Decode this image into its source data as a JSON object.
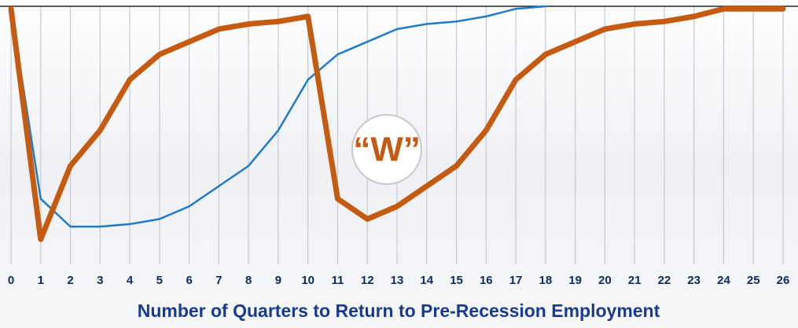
{
  "chart_data": {
    "type": "line",
    "title": "Number of Quarters to Return to Pre-Recession Employment",
    "annotation": "“W”",
    "x": [
      0,
      1,
      2,
      3,
      4,
      5,
      6,
      7,
      8,
      9,
      10,
      11,
      12,
      13,
      14,
      15,
      16,
      17,
      18,
      19,
      20,
      21,
      22,
      23,
      24,
      25,
      26
    ],
    "series": [
      {
        "color": "#1f7ac9",
        "width": 2.5,
        "values": [
          99,
          24,
          13,
          13,
          14,
          16,
          21,
          29,
          37,
          51,
          71,
          81,
          86,
          91,
          93,
          94,
          96,
          99,
          100,
          null,
          null,
          null,
          null,
          null,
          null,
          null,
          null
        ]
      },
      {
        "color": "#c55a11",
        "width": 7,
        "values": [
          99,
          8,
          37,
          51,
          71,
          81,
          86,
          91,
          93,
          94,
          96,
          24,
          16,
          21,
          29,
          37,
          51,
          71,
          81,
          86,
          91,
          93,
          94,
          96,
          99,
          99,
          99
        ]
      }
    ],
    "xlim": [
      0,
      26
    ],
    "xticks": [
      0,
      1,
      2,
      3,
      4,
      5,
      6,
      7,
      8,
      9,
      10,
      11,
      12,
      13,
      14,
      15,
      16,
      17,
      18,
      19,
      20,
      21,
      22,
      23,
      24,
      25,
      26
    ],
    "ylim": [
      0,
      100
    ],
    "grid": true
  }
}
